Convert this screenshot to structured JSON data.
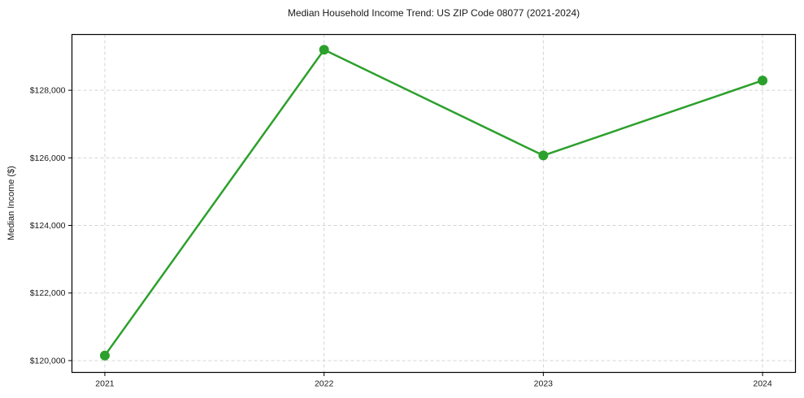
{
  "title": "Median Household Income Trend: US ZIP Code 08077 (2021-2024)",
  "chart_data": {
    "type": "line",
    "title": "Median Household Income Trend: US ZIP Code 08077 (2021-2024)",
    "xlabel": "",
    "ylabel": "Median Income ($)",
    "x": [
      2021,
      2022,
      2023,
      2024
    ],
    "x_tick_labels": [
      "2021",
      "2022",
      "2023",
      "2024"
    ],
    "series": [
      {
        "name": "Median Household Income",
        "values": [
          120150,
          129200,
          126070,
          128290
        ]
      }
    ],
    "y_ticks": [
      {
        "value": 120000,
        "label": "$120,000"
      },
      {
        "value": 122000,
        "label": "$122,000"
      },
      {
        "value": 124000,
        "label": "$124,000"
      },
      {
        "value": 126000,
        "label": "$126,000"
      },
      {
        "value": 128000,
        "label": "$128,000"
      }
    ],
    "xlim": [
      2020.85,
      2024.15
    ],
    "ylim": [
      119650,
      129650
    ],
    "grid": true,
    "grid_style": "dashed",
    "legend": "none",
    "colors": {
      "line": "#2ca02c",
      "marker": "#2ca02c",
      "grid": "#d4d4d4",
      "spine": "#000000",
      "text": "#1a1a1a",
      "background": "#ffffff"
    },
    "marker": "circle"
  }
}
